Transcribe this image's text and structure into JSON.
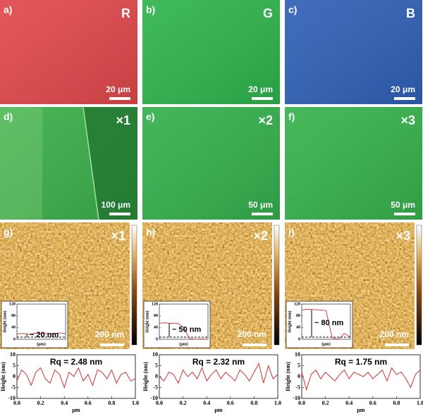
{
  "panels": [
    {
      "label": "a)",
      "marker": "R",
      "scale_bar": "20 μm",
      "color": "#e0484b"
    },
    {
      "label": "b)",
      "marker": "G",
      "scale_bar": "20 μm",
      "color": "#2fb44c"
    },
    {
      "label": "c)",
      "marker": "B",
      "scale_bar": "20 μm",
      "color": "#3060b6"
    },
    {
      "label": "d)",
      "marker": "×1",
      "scale_bar": "100 μm",
      "color": "#3aae4a"
    },
    {
      "label": "e)",
      "marker": "×2",
      "scale_bar": "50 μm",
      "color": "#34b04c"
    },
    {
      "label": "f)",
      "marker": "×3",
      "scale_bar": "50 μm",
      "color": "#36b24c"
    }
  ],
  "afm_panels": [
    {
      "label": "g)",
      "marker": "×1",
      "scale_bar": "200 nm",
      "inset": {
        "type": "line",
        "ylabel": "Height (nm)",
        "xlabel": "(μm)",
        "ylim": [
          0,
          120
        ],
        "yticks": [
          0,
          40,
          80,
          120
        ],
        "annotation": "~ 20 nm",
        "color": "#d03030",
        "values": [
          18,
          20,
          17,
          21,
          19,
          20,
          18,
          22,
          19
        ]
      }
    },
    {
      "label": "h)",
      "marker": "×2",
      "scale_bar": "200 nm",
      "inset": {
        "type": "line",
        "ylabel": "Height (nm)",
        "xlabel": "(μm)",
        "ylim": [
          0,
          120
        ],
        "yticks": [
          0,
          40,
          80,
          120
        ],
        "annotation": "~ 50 nm",
        "color": "#d03030",
        "values": [
          55,
          56,
          54,
          55,
          40,
          2,
          0,
          1,
          0
        ]
      }
    },
    {
      "label": "i)",
      "marker": "×3",
      "scale_bar": "200 nm",
      "inset": {
        "type": "line",
        "ylabel": "Height (nm)",
        "xlabel": "(μm)",
        "ylim": [
          0,
          120
        ],
        "yticks": [
          0,
          40,
          80,
          120
        ],
        "annotation": "~ 80 nm",
        "color": "#d03030",
        "values": [
          100,
          102,
          101,
          100,
          98,
          5,
          0,
          20,
          8
        ]
      }
    }
  ],
  "profiles": [
    {
      "type": "line",
      "annotation": "Rq = 2.48 nm",
      "ylabel": "Height (nm)",
      "xlabel": "μm",
      "color": "#d03030",
      "xlim": [
        0,
        1
      ],
      "ylim": [
        -10,
        10
      ],
      "yticks": [
        10,
        5,
        0,
        -5,
        -10
      ],
      "xticks": [
        {
          "value": 0,
          "label": "0.0"
        },
        {
          "value": 0.2,
          "label": "0.2"
        },
        {
          "value": 0.4,
          "label": "0.4"
        },
        {
          "value": 0.6,
          "label": "0.6"
        },
        {
          "value": 0.8,
          "label": "0.8"
        },
        {
          "value": 1,
          "label": "1.0"
        }
      ],
      "x": [
        0,
        0.04,
        0.08,
        0.12,
        0.16,
        0.2,
        0.24,
        0.28,
        0.32,
        0.36,
        0.4,
        0.44,
        0.48,
        0.52,
        0.56,
        0.6,
        0.64,
        0.68,
        0.72,
        0.76,
        0.8,
        0.84,
        0.88,
        0.92,
        0.96,
        1
      ],
      "values": [
        -2,
        3,
        1,
        -4,
        2,
        4,
        -1,
        -3,
        3,
        1,
        -5,
        2,
        0,
        4,
        -2,
        1,
        -4,
        3,
        2,
        -1,
        3,
        -3,
        1,
        2,
        -2,
        -1
      ]
    },
    {
      "type": "line",
      "annotation": "Rq = 2.32 nm",
      "ylabel": "Height (nm)",
      "xlabel": "μm",
      "color": "#d03030",
      "xlim": [
        0,
        1
      ],
      "ylim": [
        -10,
        10
      ],
      "yticks": [
        10,
        5,
        0,
        -5,
        -10
      ],
      "xticks": [
        {
          "value": 0,
          "label": "0.0"
        },
        {
          "value": 0.2,
          "label": "0.2"
        },
        {
          "value": 0.4,
          "label": "0.4"
        },
        {
          "value": 0.6,
          "label": "0.6"
        },
        {
          "value": 0.8,
          "label": "0.8"
        },
        {
          "value": 1,
          "label": "1.0"
        }
      ],
      "x": [
        0,
        0.04,
        0.08,
        0.12,
        0.16,
        0.2,
        0.24,
        0.28,
        0.32,
        0.36,
        0.4,
        0.44,
        0.48,
        0.52,
        0.56,
        0.6,
        0.64,
        0.68,
        0.72,
        0.76,
        0.8,
        0.84,
        0.88,
        0.92,
        0.96,
        1
      ],
      "values": [
        0,
        -2,
        2,
        1,
        -3,
        3,
        0,
        2,
        -1,
        4,
        -2,
        1,
        3,
        -1,
        2,
        0,
        -2,
        3,
        1,
        -2,
        2,
        6,
        -3,
        5,
        -1,
        1
      ]
    },
    {
      "type": "line",
      "annotation": "Rq = 1.75 nm",
      "ylabel": "Height (nm)",
      "xlabel": "μm",
      "color": "#d03030",
      "xlim": [
        0,
        1
      ],
      "ylim": [
        -10,
        10
      ],
      "yticks": [
        10,
        5,
        0,
        -5,
        -10
      ],
      "xticks": [
        {
          "value": 0,
          "label": "0.0"
        },
        {
          "value": 0.2,
          "label": "0.2"
        },
        {
          "value": 0.4,
          "label": "0.4"
        },
        {
          "value": 0.6,
          "label": "0.6"
        },
        {
          "value": 0.8,
          "label": "0.8"
        },
        {
          "value": 1,
          "label": "1.0"
        }
      ],
      "x": [
        0,
        0.04,
        0.08,
        0.12,
        0.16,
        0.2,
        0.24,
        0.28,
        0.32,
        0.36,
        0.4,
        0.44,
        0.48,
        0.52,
        0.56,
        0.6,
        0.64,
        0.68,
        0.72,
        0.76,
        0.8,
        0.84,
        0.88,
        0.92,
        0.96,
        1
      ],
      "values": [
        2,
        -6,
        1,
        3,
        -1,
        2,
        0,
        -2,
        1,
        3,
        -1,
        2,
        1,
        0,
        2,
        -1,
        1,
        3,
        -2,
        4,
        1,
        2,
        -1,
        -5,
        1,
        3
      ]
    }
  ]
}
